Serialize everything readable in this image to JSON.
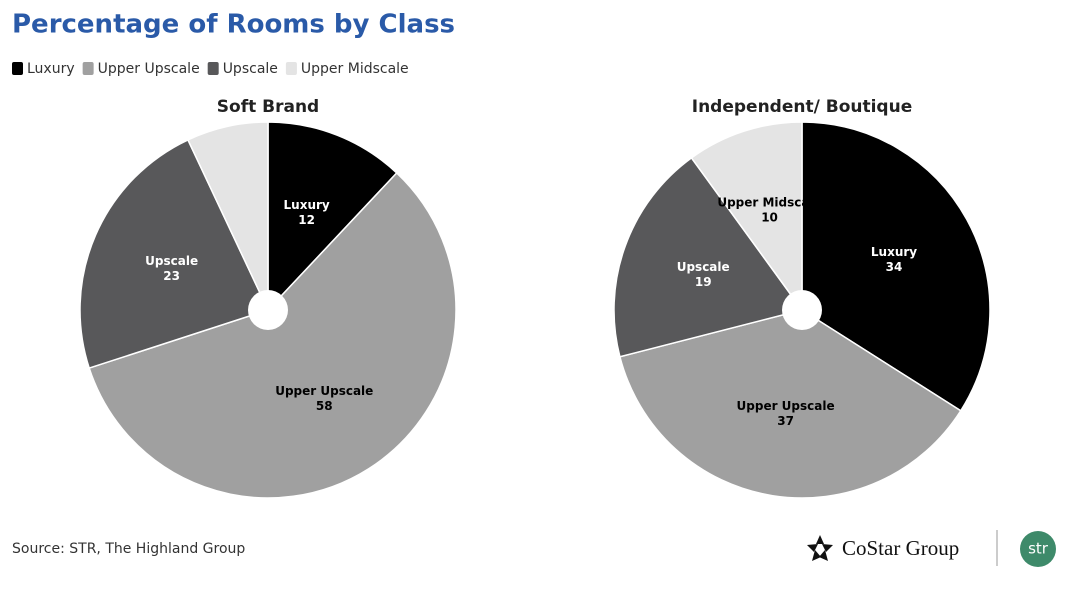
{
  "title": "Percentage of Rooms by Class",
  "source": "Source: STR, The Highland Group",
  "logos": {
    "costar": "CoStar Group",
    "str": "str"
  },
  "chart_data": [
    {
      "type": "pie",
      "title": "Soft Brand",
      "categories": [
        "Luxury",
        "Upper Upscale",
        "Upscale",
        "Upper Midscale"
      ],
      "values": [
        12,
        58,
        23,
        7
      ],
      "colors": [
        "#000000",
        "#a0a0a0",
        "#58585a",
        "#e4e4e4"
      ],
      "show_labels": [
        true,
        true,
        true,
        false
      ]
    },
    {
      "type": "pie",
      "title": "Independent/ Boutique",
      "categories": [
        "Luxury",
        "Upper Upscale",
        "Upscale",
        "Upper Midscale"
      ],
      "values": [
        34,
        37,
        19,
        10
      ],
      "colors": [
        "#000000",
        "#a0a0a0",
        "#58585a",
        "#e4e4e4"
      ],
      "show_labels": [
        true,
        true,
        true,
        true
      ]
    }
  ]
}
